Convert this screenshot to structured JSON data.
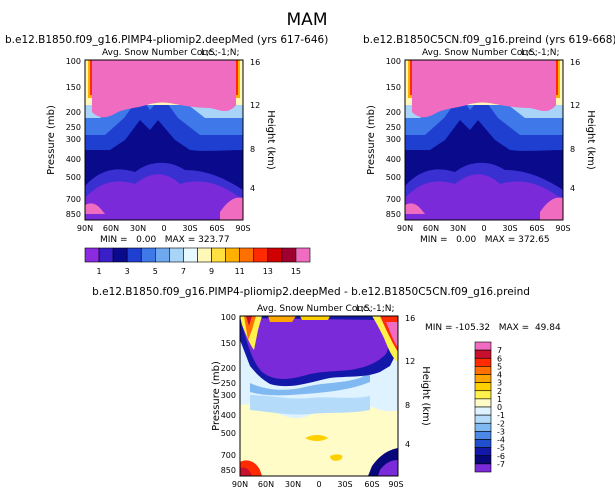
{
  "page_title": "MAM",
  "chart_data": [
    {
      "type": "heatmap",
      "panel": "top-left",
      "run_title": "b.e12.B1850.f09_g16.PIMP4-pliomip2.deepMed (yrs 617-646)",
      "var_title": "Avg. Snow Number Conc.",
      "level_tag": "L;S;-1;N;",
      "ylabel": "Pressure (mb)",
      "ylabel_right": "Height (km)",
      "x_ticks": [
        "90N",
        "60N",
        "30N",
        "0",
        "30S",
        "60S",
        "90S"
      ],
      "y_ticks": [
        "100",
        "150",
        "200",
        "250",
        "300",
        "400",
        "500",
        "700",
        "850"
      ],
      "y_ticks_right": [
        "16",
        "12",
        "8",
        "4"
      ],
      "ylim": [
        1000,
        100
      ],
      "xlim": [
        "90N",
        "90S"
      ],
      "stats": "MIN =   0.00   MAX = 323.77",
      "min": 0.0,
      "max": 323.77
    },
    {
      "type": "heatmap",
      "panel": "top-right",
      "run_title": "b.e12.B1850C5CN.f09_g16.preind (yrs 619-668)",
      "var_title": "Avg. Snow Number Conc.",
      "level_tag": "L;S;-1;N;",
      "ylabel": "Pressure (mb)",
      "ylabel_right": "Height (km)",
      "x_ticks": [
        "90N",
        "60N",
        "30N",
        "0",
        "30S",
        "60S",
        "90S"
      ],
      "y_ticks": [
        "100",
        "150",
        "200",
        "250",
        "300",
        "400",
        "500",
        "700",
        "850"
      ],
      "y_ticks_right": [
        "16",
        "12",
        "8",
        "4"
      ],
      "ylim": [
        1000,
        100
      ],
      "xlim": [
        "90N",
        "90S"
      ],
      "stats": "MIN =   0.00   MAX = 372.65",
      "min": 0.0,
      "max": 372.65
    },
    {
      "type": "heatmap",
      "panel": "bottom-difference",
      "run_title": "b.e12.B1850.f09_g16.PIMP4-pliomip2.deepMed - b.e12.B1850C5CN.f09_g16.preind",
      "var_title": "Avg. Snow Number Conc.",
      "level_tag": "L;S;-1;N;",
      "ylabel": "Pressure (mb)",
      "ylabel_right": "Height (km)",
      "x_ticks": [
        "90N",
        "60N",
        "30N",
        "0",
        "30S",
        "60S",
        "90S"
      ],
      "y_ticks": [
        "100",
        "150",
        "200",
        "250",
        "300",
        "400",
        "500",
        "700",
        "850"
      ],
      "y_ticks_right": [
        "16",
        "12",
        "8",
        "4"
      ],
      "ylim": [
        1000,
        100
      ],
      "xlim": [
        "90N",
        "90S"
      ],
      "stats": "MIN = -105.32   MAX =  49.84",
      "min": -105.32,
      "max": 49.84
    }
  ],
  "colorbar_top": {
    "orientation": "horizontal",
    "labels": [
      "1",
      "3",
      "5",
      "7",
      "9",
      "11",
      "13",
      "15"
    ],
    "colors": [
      "#8a2be2",
      "#3a1fc8",
      "#0a0a8c",
      "#1f3fd0",
      "#3f78e8",
      "#70a8f0",
      "#a8d4f8",
      "#e8f8ff",
      "#fff8b8",
      "#ffe040",
      "#ffb000",
      "#ff7000",
      "#ff2a00",
      "#d00000",
      "#a00030",
      "#f06cc0"
    ]
  },
  "colorbar_diff": {
    "orientation": "vertical",
    "labels": [
      "7",
      "6",
      "5",
      "4",
      "3",
      "2",
      "1",
      "0",
      "-1",
      "-2",
      "-3",
      "-4",
      "-5",
      "-6",
      "-7"
    ],
    "colors": [
      "#f06cc0",
      "#c8102e",
      "#ff2a00",
      "#ff7000",
      "#ffa500",
      "#ffd000",
      "#fff24a",
      "#fffcc8",
      "#dff2ff",
      "#b4dcfa",
      "#80b8f2",
      "#4c88e6",
      "#2050d0",
      "#1418a8",
      "#08087a",
      "#7a2ad8"
    ]
  }
}
